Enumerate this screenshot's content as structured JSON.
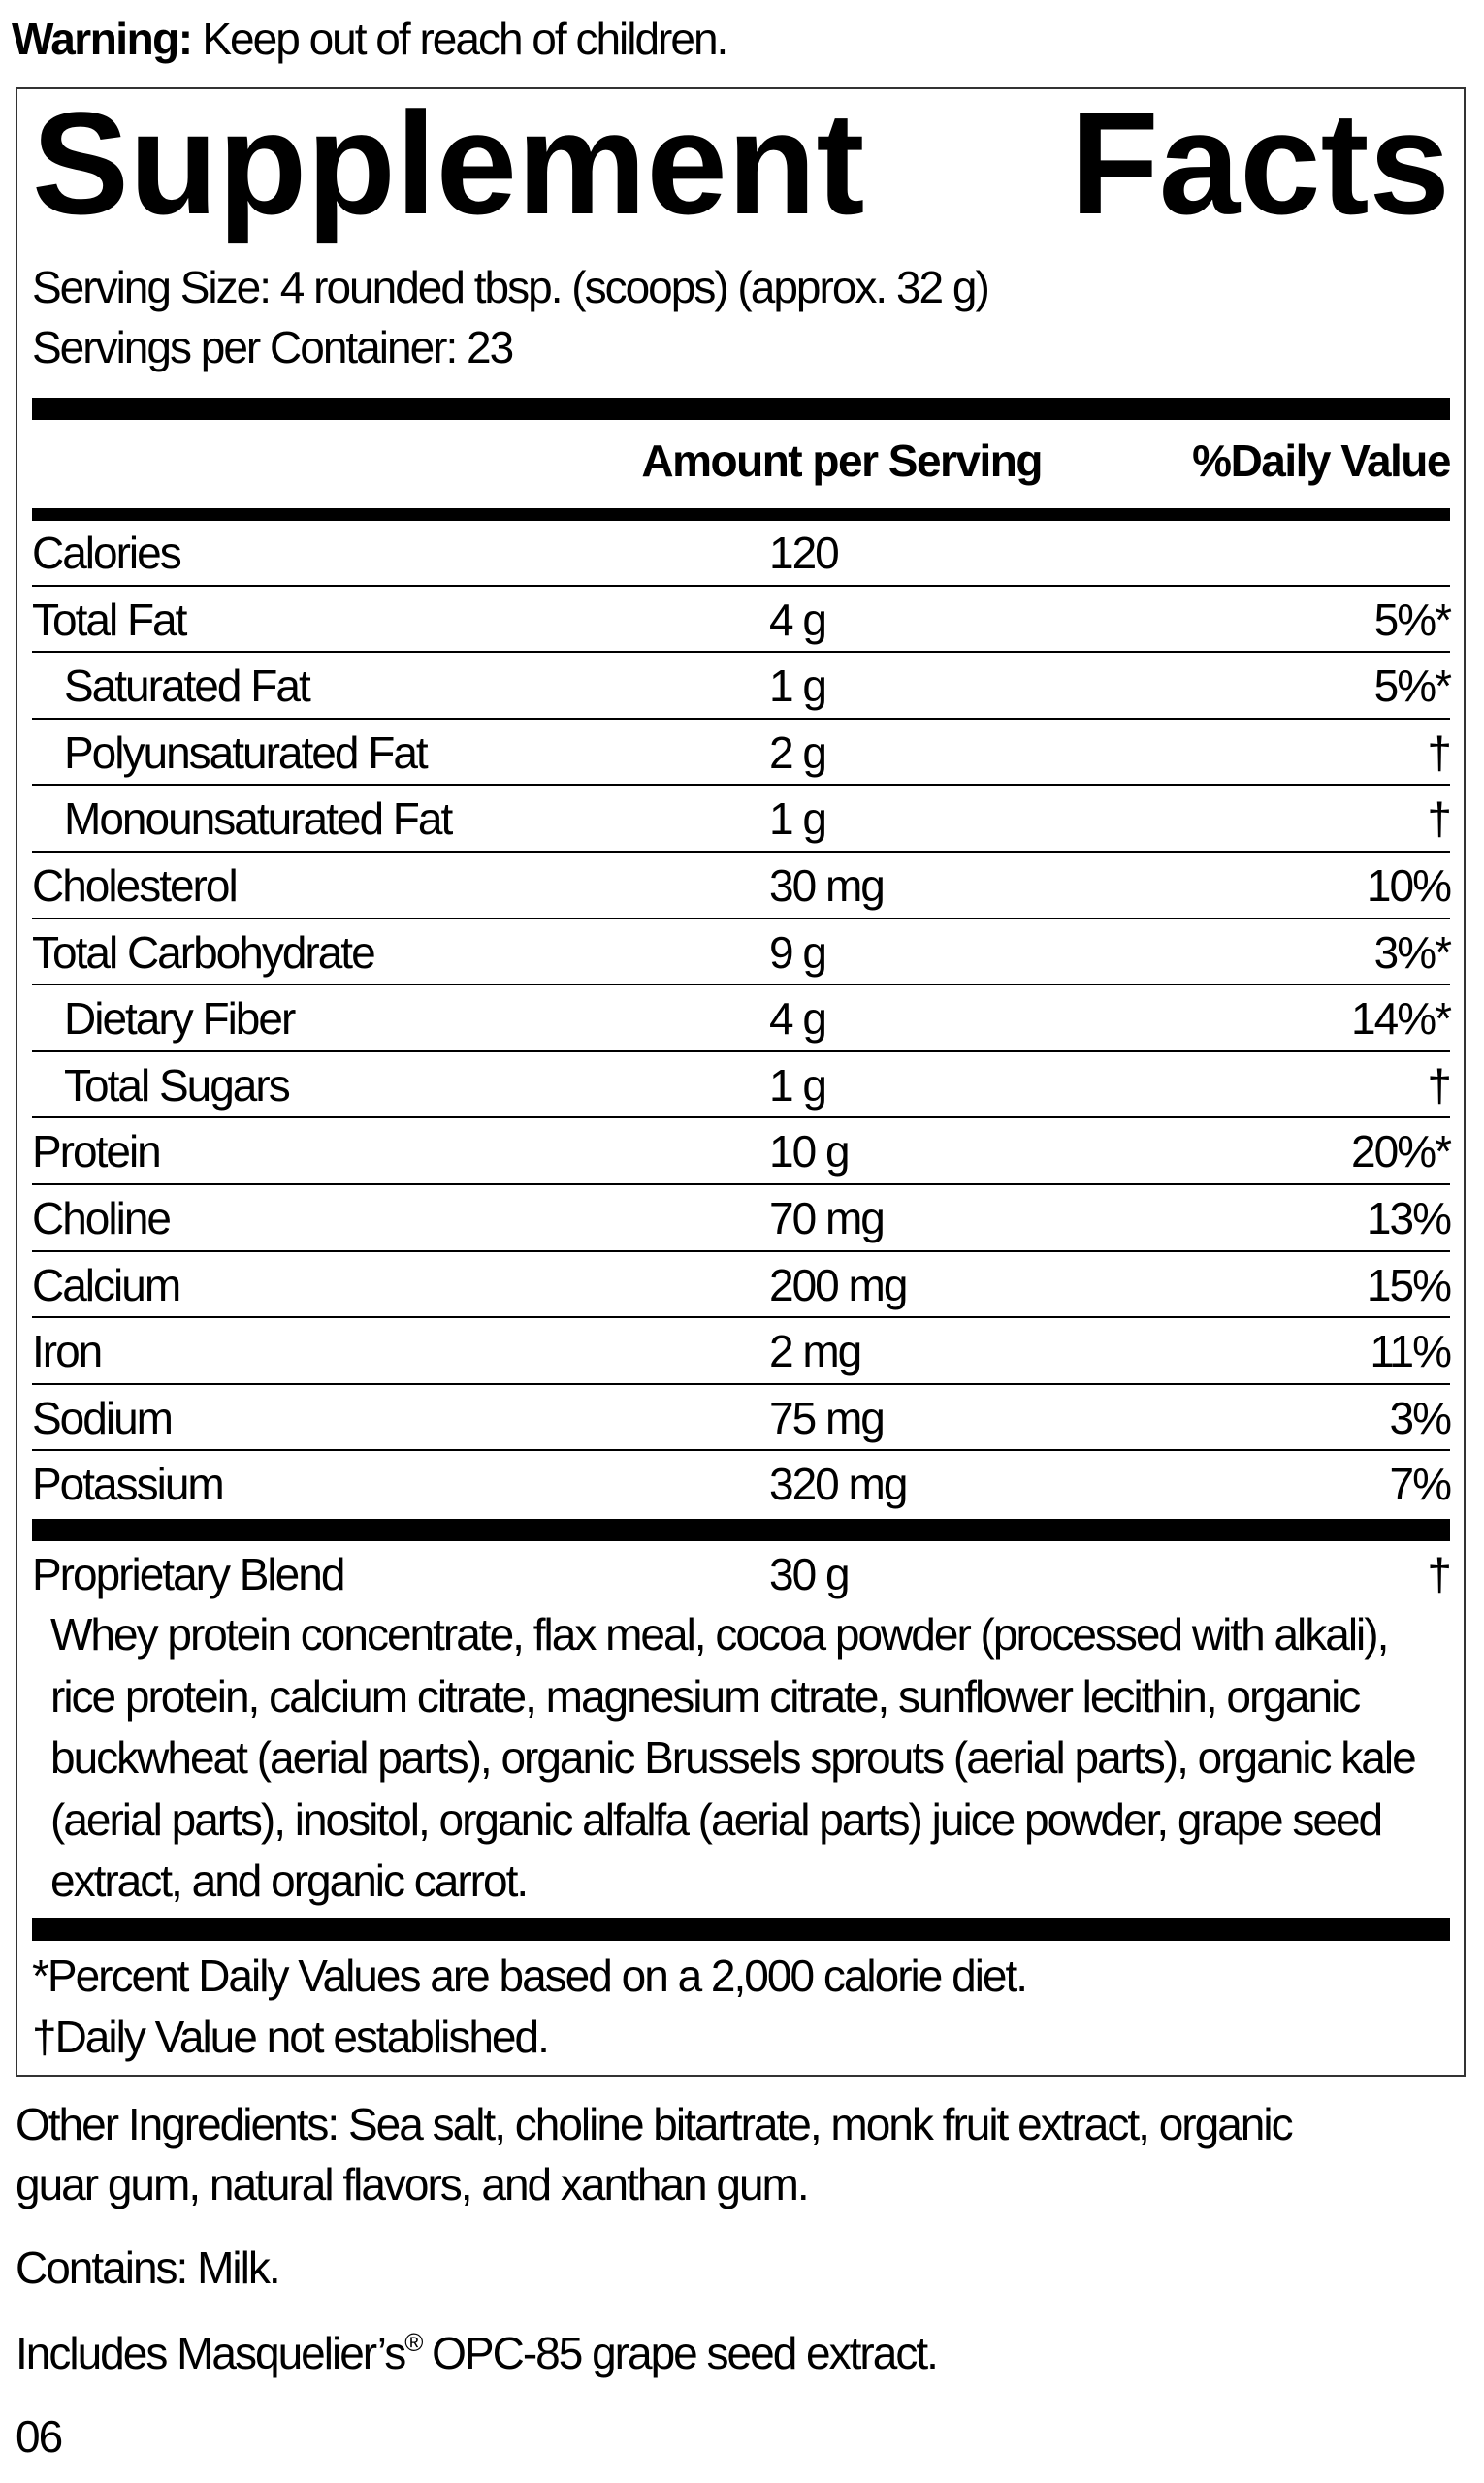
{
  "warning": {
    "label": "Warning:",
    "text": " Keep out of reach of children."
  },
  "title": {
    "word1": "Supplement",
    "word2": "Facts"
  },
  "serving_size": "Serving Size: 4 rounded tbsp. (scoops) (approx. 32 g)",
  "servings_per_container": "Servings per Container: 23",
  "header": {
    "amount": "Amount per Serving",
    "daily_value": "%Daily Value"
  },
  "rows": [
    {
      "name": "Calories",
      "amount": "120",
      "dv": "",
      "indent": false
    },
    {
      "name": "Total Fat",
      "amount": "4 g",
      "dv": "5%*",
      "indent": false
    },
    {
      "name": "Saturated Fat",
      "amount": "1 g",
      "dv": "5%*",
      "indent": true
    },
    {
      "name": "Polyunsaturated Fat",
      "amount": "2 g",
      "dv": "†",
      "indent": true
    },
    {
      "name": "Monounsaturated Fat",
      "amount": "1 g",
      "dv": "†",
      "indent": true
    },
    {
      "name": "Cholesterol",
      "amount": "30 mg",
      "dv": "10%",
      "indent": false
    },
    {
      "name": "Total Carbohydrate",
      "amount": "9 g",
      "dv": "3%*",
      "indent": false
    },
    {
      "name": "Dietary Fiber",
      "amount": "4 g",
      "dv": "14%*",
      "indent": true
    },
    {
      "name": "Total Sugars",
      "amount": "1 g",
      "dv": "†",
      "indent": true
    },
    {
      "name": "Protein",
      "amount": "10 g",
      "dv": "20%*",
      "indent": false
    },
    {
      "name": "Choline",
      "amount": "70 mg",
      "dv": "13%",
      "indent": false
    },
    {
      "name": "Calcium",
      "amount": "200 mg",
      "dv": "15%",
      "indent": false
    },
    {
      "name": "Iron",
      "amount": "2 mg",
      "dv": "11%",
      "indent": false
    },
    {
      "name": "Sodium",
      "amount": "75 mg",
      "dv": "3%",
      "indent": false
    },
    {
      "name": "Potassium",
      "amount": "320 mg",
      "dv": "7%",
      "indent": false
    }
  ],
  "blend": {
    "name": "Proprietary Blend",
    "amount": "30 g",
    "dv": "†",
    "ingredients": [
      "Whey protein concentrate, flax meal, cocoa powder (processed with alkali),",
      "rice protein, calcium citrate, magnesium citrate, sunflower lecithin, organic",
      "buckwheat (aerial parts), organic Brussels sprouts (aerial parts), organic kale",
      "(aerial parts), inositol, organic alfalfa (aerial parts) juice powder, grape seed",
      "extract, and organic carrot."
    ]
  },
  "footnotes": [
    "*Percent Daily Values are based on a 2,000 calorie diet.",
    "†Daily Value not established."
  ],
  "other_ingredients": [
    "Other Ingredients: Sea salt, choline bitartrate, monk fruit extract, organic",
    "guar gum, natural flavors, and xanthan gum."
  ],
  "contains": "Contains: Milk.",
  "includes": {
    "before": "Includes Masquelier’s",
    "reg": "®",
    "after": " OPC-85 grape seed extract."
  },
  "code": "06"
}
